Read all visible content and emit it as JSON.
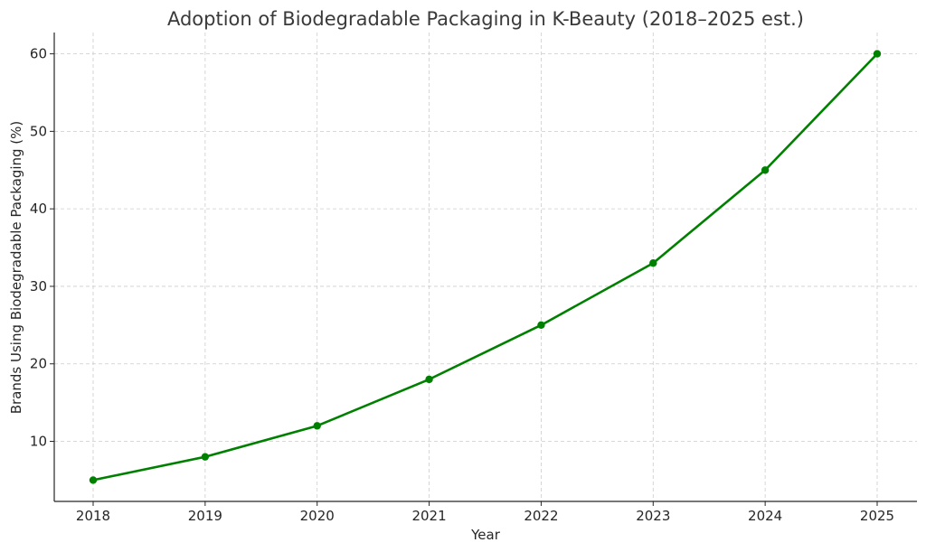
{
  "chart_data": {
    "type": "line",
    "title": "Adoption of Biodegradable Packaging in K-Beauty (2018–2025 est.)",
    "xlabel": "Year",
    "ylabel": "Brands Using Biodegradable Packaging (%)",
    "x": [
      "2018",
      "2019",
      "2020",
      "2021",
      "2022",
      "2023",
      "2024",
      "2025"
    ],
    "series": [
      {
        "values": [
          5,
          8,
          12,
          18,
          25,
          33,
          45,
          60
        ],
        "color": "#008000"
      }
    ],
    "yticks": [
      10,
      20,
      30,
      40,
      50,
      60
    ],
    "ylim": [
      2.25,
      62.75
    ],
    "grid": true,
    "marker": "circle"
  }
}
